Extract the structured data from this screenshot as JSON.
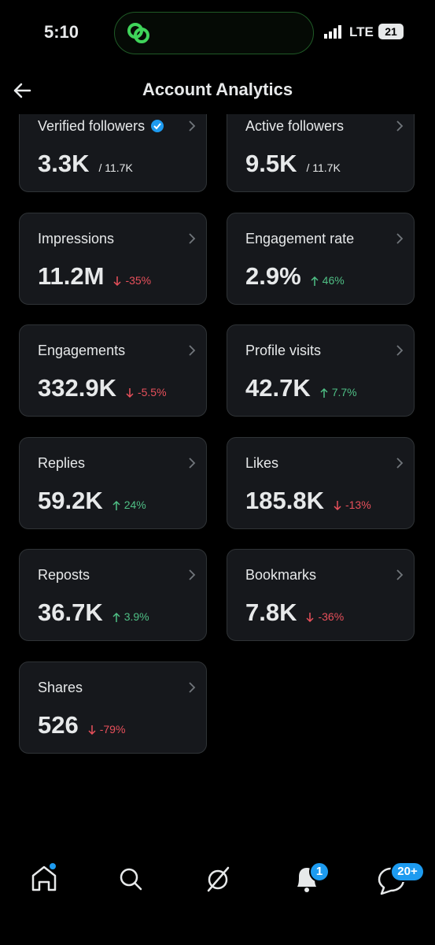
{
  "status_bar": {
    "time": "5:10",
    "network": "LTE",
    "battery": "21"
  },
  "header": {
    "title": "Account Analytics"
  },
  "cards": [
    {
      "label": "Verified followers",
      "verified": true,
      "value": "3.3K",
      "total": "/ 11.7K"
    },
    {
      "label": "Active followers",
      "value": "9.5K",
      "total": "/ 11.7K"
    },
    {
      "label": "Impressions",
      "value": "11.2M",
      "change": "-35%",
      "trend": "down"
    },
    {
      "label": "Engagement rate",
      "value": "2.9%",
      "change": "46%",
      "trend": "up"
    },
    {
      "label": "Engagements",
      "value": "332.9K",
      "change": "-5.5%",
      "trend": "down"
    },
    {
      "label": "Profile visits",
      "value": "42.7K",
      "change": "7.7%",
      "trend": "up"
    },
    {
      "label": "Replies",
      "value": "59.2K",
      "change": "24%",
      "trend": "up"
    },
    {
      "label": "Likes",
      "value": "185.8K",
      "change": "-13%",
      "trend": "down"
    },
    {
      "label": "Reposts",
      "value": "36.7K",
      "change": "3.9%",
      "trend": "up"
    },
    {
      "label": "Bookmarks",
      "value": "7.8K",
      "change": "-36%",
      "trend": "down"
    },
    {
      "label": "Shares",
      "value": "526",
      "change": "-79%",
      "trend": "down"
    }
  ],
  "nav": {
    "notifications_badge": "1",
    "messages_badge": "20+"
  }
}
